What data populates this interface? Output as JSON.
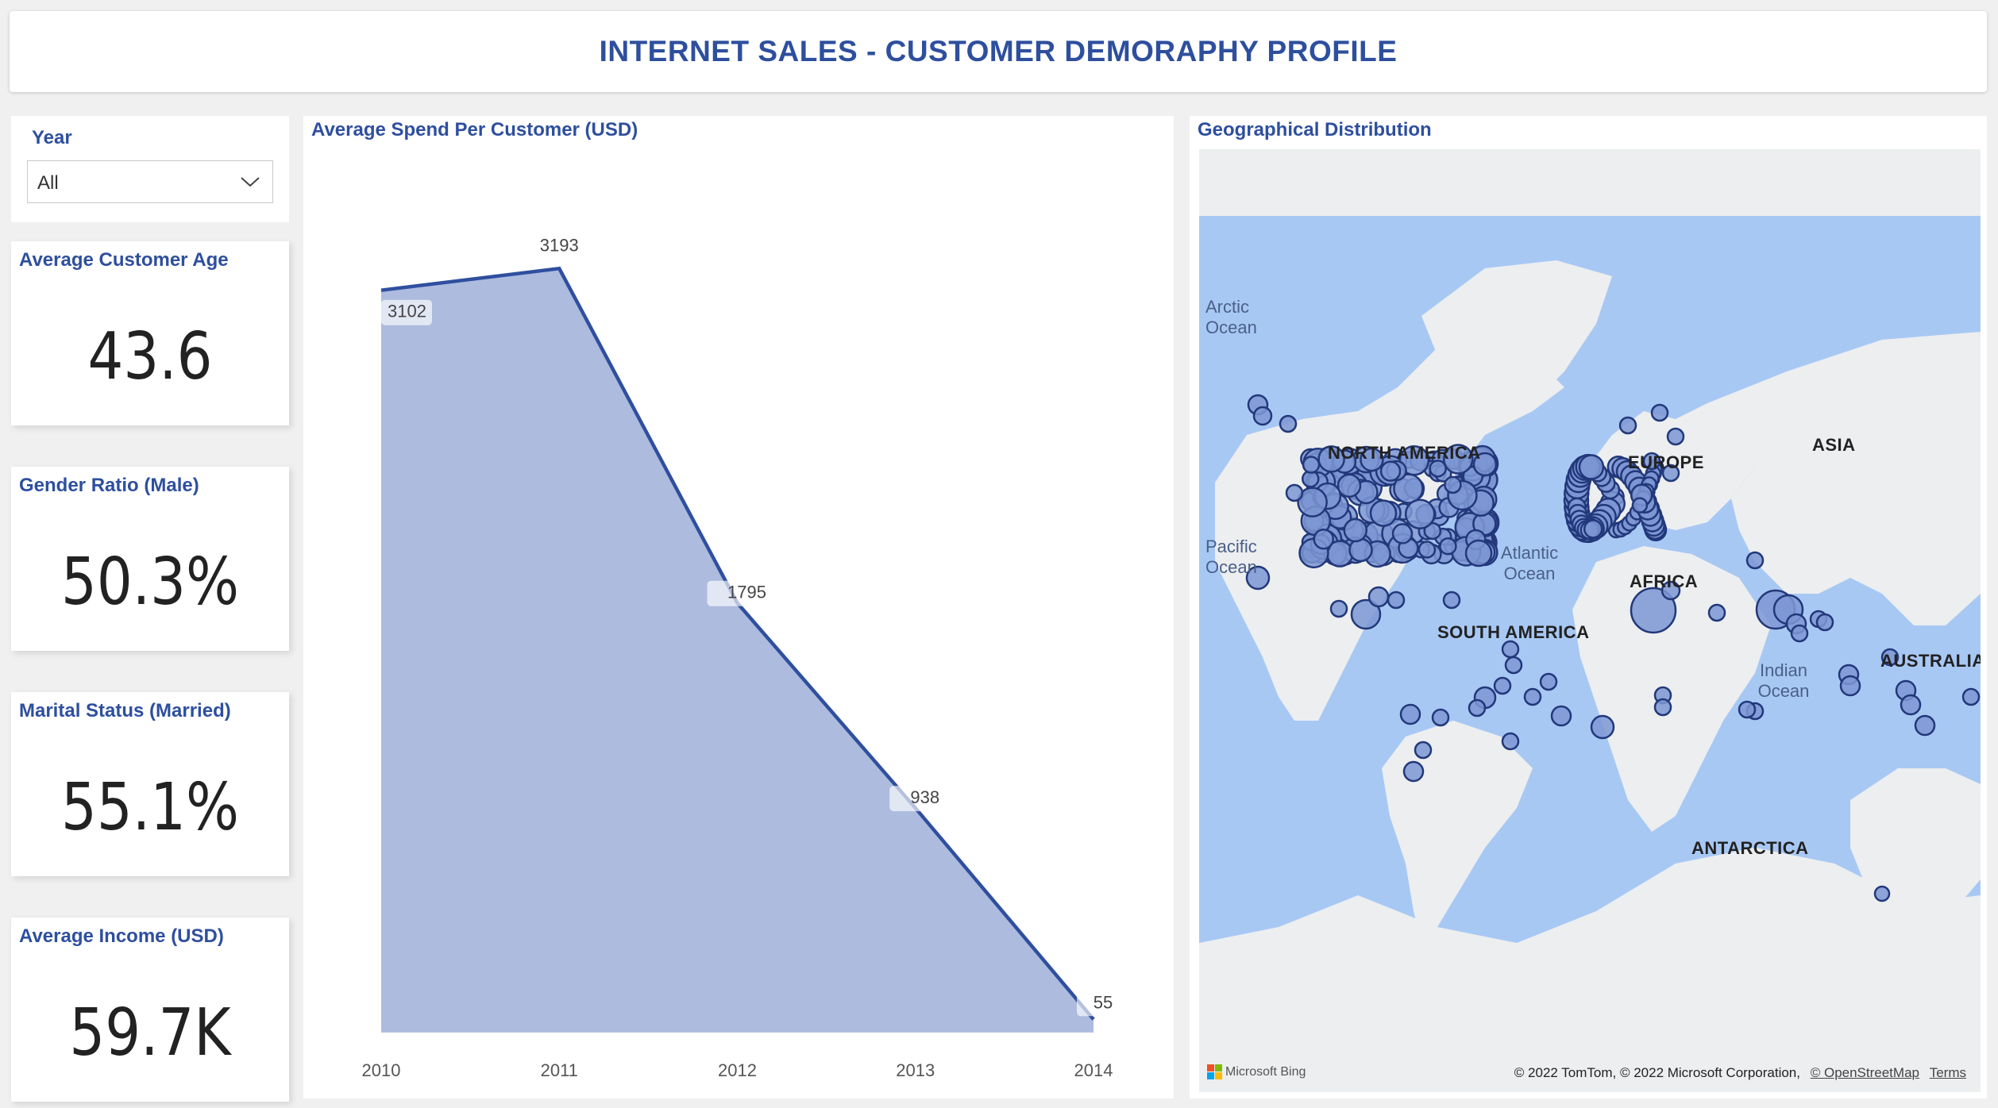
{
  "header": {
    "title": "INTERNET SALES - CUSTOMER DEMORAPHY PROFILE"
  },
  "slicer": {
    "label": "Year",
    "value": "All"
  },
  "cards": [
    {
      "title": "Average Customer Age",
      "value": "43.6"
    },
    {
      "title": "Gender Ratio (Male)",
      "value": "50.3%"
    },
    {
      "title": "Marital Status (Married)",
      "value": "55.1%"
    },
    {
      "title": "Average Income (USD)",
      "value": "59.7K"
    }
  ],
  "chart": {
    "title": "Average Spend Per Customer (USD)"
  },
  "chart_data": {
    "type": "area",
    "title": "Average Spend Per Customer (USD)",
    "categories": [
      "2010",
      "2011",
      "2012",
      "2013",
      "2014"
    ],
    "values": [
      3102,
      3193,
      1795,
      938,
      55
    ],
    "data_labels": [
      "3102",
      "3193",
      "1795",
      "938",
      "55"
    ],
    "ylim": [
      -90,
      3300
    ],
    "colors": {
      "fill": "#adbbde",
      "line": "#2f4f9f"
    },
    "grid": false
  },
  "map": {
    "title": "Geographical Distribution",
    "labels": {
      "arctic": "Arctic Ocean",
      "pacific": "Pacific Ocean",
      "atlantic": "Atlantic Ocean",
      "indian": "Indian Ocean",
      "north_america": "NORTH AMERICA",
      "europe": "EUROPE",
      "asia": "ASIA",
      "africa": "AFRICA",
      "south_america": "SOUTH AMERICA",
      "australia": "AUSTRALIA",
      "antarctica": "ANTARCTICA"
    },
    "footer": {
      "brand": "Microsoft Bing",
      "attribution": "© 2022 TomTom, © 2022 Microsoft Corporation,",
      "osm": "© OpenStreetMap",
      "terms": "Terms"
    }
  },
  "colors": {
    "accent": "#2e4f9e",
    "ocean": "#a8c8f4",
    "land": "#eceeef",
    "bubble": "#7d96d4",
    "bubble_stroke": "#22387a"
  },
  "icons": {
    "dropdown": "chevron-down-icon",
    "bing": "microsoft-logo-icon"
  }
}
